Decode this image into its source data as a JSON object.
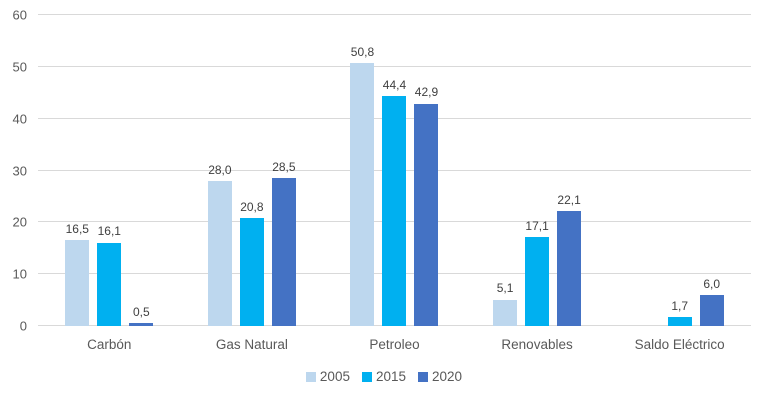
{
  "chart_data": {
    "type": "bar",
    "title": "",
    "categories": [
      "Carbón",
      "Gas Natural",
      "Petroleo",
      "Renovables",
      "Saldo Eléctrico"
    ],
    "series": [
      {
        "name": "2005",
        "color": "#BDD7EE",
        "values": [
          16.5,
          28.0,
          50.8,
          5.1,
          null
        ],
        "labels": [
          "16,5",
          "28,0",
          "50,8",
          "5,1",
          ""
        ]
      },
      {
        "name": "2015",
        "color": "#00B0F0",
        "values": [
          16.1,
          20.8,
          44.4,
          17.1,
          1.7
        ],
        "labels": [
          "16,1",
          "20,8",
          "44,4",
          "17,1",
          "1,7"
        ]
      },
      {
        "name": "2020",
        "color": "#4472C4",
        "values": [
          0.5,
          28.5,
          42.9,
          22.1,
          6.0
        ],
        "labels": [
          "0,5",
          "28,5",
          "42,9",
          "22,1",
          "6,0"
        ]
      }
    ],
    "xlabel": "",
    "ylabel": "",
    "ylim": [
      0,
      60
    ],
    "ytick_step": 10,
    "yticks": [
      "0",
      "10",
      "20",
      "30",
      "40",
      "50",
      "60"
    ],
    "grid": true,
    "legend_position": "bottom",
    "decimal_separator": ","
  },
  "colors": {
    "background": "#FFFFFF",
    "gridline": "#D9D9D9",
    "axis_text": "#595959",
    "data_label": "#404040"
  }
}
